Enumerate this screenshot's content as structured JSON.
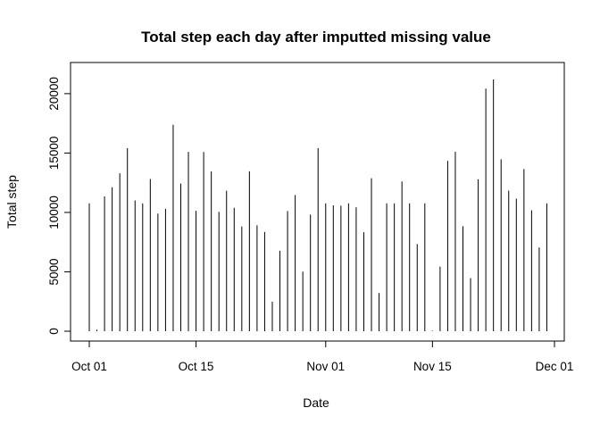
{
  "chart_data": {
    "type": "bar",
    "title": "Total step each day after imputted missing value",
    "xlabel": "Date",
    "ylabel": "Total step",
    "x_start": "2012-10-01",
    "x_end": "2012-11-30",
    "xlim": [
      "2012-10-01",
      "2012-12-01"
    ],
    "ylim": [
      0,
      21194
    ],
    "x_ticks": [
      {
        "label": "Oct 01",
        "date": "2012-10-01"
      },
      {
        "label": "Oct 15",
        "date": "2012-10-15"
      },
      {
        "label": "Nov 01",
        "date": "2012-11-01"
      },
      {
        "label": "Nov 15",
        "date": "2012-11-15"
      },
      {
        "label": "Dec 01",
        "date": "2012-12-01"
      }
    ],
    "y_ticks": [
      0,
      5000,
      10000,
      15000,
      20000
    ],
    "values": [
      10766,
      126,
      11352,
      12116,
      13294,
      15420,
      11015,
      10766,
      12811,
      9900,
      10304,
      17382,
      12426,
      15098,
      10139,
      15084,
      13452,
      10056,
      11829,
      10395,
      8821,
      13460,
      8918,
      8355,
      2492,
      6778,
      10119,
      11458,
      5018,
      9819,
      15414,
      10766,
      10600,
      10571,
      10766,
      10439,
      8334,
      12883,
      3219,
      10766,
      10766,
      12608,
      10765,
      7336,
      10766,
      41,
      5441,
      14339,
      15110,
      8841,
      4472,
      12787,
      20427,
      21194,
      14478,
      11834,
      11162,
      13646,
      10183,
      7047,
      10766
    ],
    "grid": false,
    "legend": "none",
    "bar_color": "#000000"
  }
}
